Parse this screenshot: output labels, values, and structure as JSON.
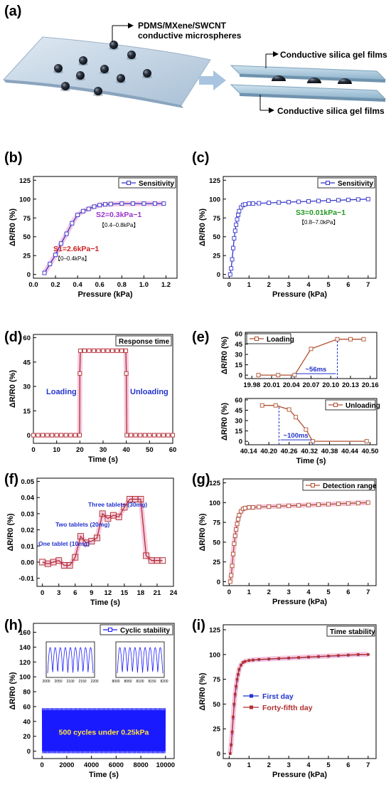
{
  "panel_labels": [
    "(a)",
    "(b)",
    "(c)",
    "(d)",
    "(e)",
    "(f)",
    "(g)",
    "(h)",
    "(i)"
  ],
  "schematic": {
    "microspheres_label_line1": "PDMS/MXene/SWCNT",
    "microspheres_label_line2": "conductive microspheres",
    "film_top_label": "Conductive silica gel films",
    "film_bottom_label": "Conductive silica gel films"
  },
  "chart_data": [
    {
      "id": "b",
      "type": "line",
      "xlabel": "Pressure (kPa)",
      "ylabel": "ΔR/R0 (%)",
      "xlim": [
        0,
        1.3
      ],
      "ylim": [
        -5,
        130
      ],
      "xticks": [
        0,
        0.2,
        0.4,
        0.6,
        0.8,
        1.0,
        1.2
      ],
      "xtick_labels": [
        "0.0",
        "0.2",
        "0.4",
        "0.6",
        "0.8",
        "1.0",
        "1.2"
      ],
      "yticks": [
        0,
        25,
        50,
        75,
        100,
        125
      ],
      "series": [
        {
          "name": "Sensitivity",
          "color": "#3333cc",
          "x": [
            0.1,
            0.15,
            0.2,
            0.25,
            0.3,
            0.35,
            0.4,
            0.45,
            0.5,
            0.55,
            0.6,
            0.65,
            0.7,
            0.8,
            0.9,
            1.0,
            1.1,
            1.18
          ],
          "y": [
            2,
            14,
            26,
            41,
            54,
            68,
            79,
            84,
            87,
            90,
            92,
            93,
            93.5,
            94,
            94,
            94,
            94,
            94
          ]
        }
      ],
      "annotations": [
        {
          "text": "S2=0.3kPa−1",
          "sub": "【0.4–0.8kPa】",
          "color": "#9933cc"
        },
        {
          "text": "S1=2.6kPa−1",
          "sub": "【0–0.4kPa】",
          "color": "#cc2222"
        }
      ]
    },
    {
      "id": "c",
      "type": "line",
      "xlabel": "Pressure (kPa)",
      "ylabel": "ΔR/R0 (%)",
      "xlim": [
        -0.3,
        7.4
      ],
      "ylim": [
        -5,
        130
      ],
      "xticks": [
        0,
        1,
        2,
        3,
        4,
        5,
        6,
        7
      ],
      "yticks": [
        0,
        25,
        50,
        75,
        100,
        125
      ],
      "series": [
        {
          "name": "Sensitivity",
          "color": "#3333cc",
          "x": [
            0.05,
            0.1,
            0.15,
            0.2,
            0.25,
            0.3,
            0.35,
            0.4,
            0.45,
            0.5,
            0.6,
            0.7,
            0.8,
            1.0,
            1.2,
            1.5,
            2,
            2.5,
            3,
            3.5,
            4,
            4.5,
            5,
            5.5,
            6,
            6.5,
            7
          ],
          "y": [
            0,
            8,
            20,
            35,
            48,
            58,
            66,
            73,
            79,
            84,
            89,
            92,
            93,
            94,
            94,
            94.5,
            95,
            95.5,
            96,
            96.5,
            97,
            97.5,
            98,
            98.5,
            99,
            99.5,
            100
          ]
        }
      ],
      "annotations": [
        {
          "text": "S3=0.01kPa−1",
          "sub": "【0.8–7.0kPa】",
          "color": "#229922"
        }
      ]
    },
    {
      "id": "d",
      "type": "line",
      "xlabel": "Time (s)",
      "ylabel": "ΔR/R0 (%)",
      "xlim": [
        0,
        60
      ],
      "ylim": [
        -5,
        62
      ],
      "xticks": [
        0,
        10,
        20,
        30,
        40,
        50,
        60
      ],
      "yticks": [
        0,
        15,
        30,
        45,
        60
      ],
      "series": [
        {
          "name": "Response time",
          "color": "#b03030",
          "x": [
            0,
            2,
            4,
            6,
            8,
            10,
            12,
            14,
            16,
            18,
            19.9,
            20,
            20.2,
            22,
            24,
            26,
            28,
            30,
            32,
            34,
            36,
            38,
            39.8,
            40,
            40.2,
            42,
            44,
            46,
            48,
            50,
            52,
            54,
            56,
            58,
            60
          ],
          "y": [
            0,
            0,
            0,
            0,
            0,
            0,
            0,
            0,
            0,
            0,
            0,
            38,
            52,
            52,
            52,
            52,
            52,
            52,
            52,
            52,
            52,
            52,
            52,
            38,
            0,
            0,
            0,
            0,
            0,
            0,
            0,
            0,
            0,
            0,
            0
          ]
        }
      ],
      "annotations": [
        {
          "text": "Loading"
        },
        {
          "text": "Unloading"
        }
      ]
    },
    {
      "id": "e1",
      "type": "line",
      "ylabel": "ΔR/R0 (%)",
      "xlim": [
        19.97,
        20.17
      ],
      "ylim": [
        -5,
        62
      ],
      "xticks": [
        19.98,
        20.01,
        20.04,
        20.07,
        20.1,
        20.13,
        20.16
      ],
      "xtick_labels": [
        "19.98",
        "20.01",
        "20.04",
        "20.07",
        "20.10",
        "20.13",
        "20.16"
      ],
      "yticks": [
        0,
        15,
        30,
        45,
        60
      ],
      "series": [
        {
          "name": "Loading",
          "color": "#b05030",
          "x": [
            19.99,
            20.02,
            20.045,
            20.07,
            20.11,
            20.13,
            20.15
          ],
          "y": [
            0,
            0,
            0,
            38,
            52,
            52,
            52
          ]
        }
      ],
      "annotations": [
        {
          "text": "~56ms"
        }
      ]
    },
    {
      "id": "e2",
      "type": "line",
      "xlabel": "Time (s)",
      "ylabel": "ΔR/R0 (%)",
      "xlim": [
        40.13,
        40.52
      ],
      "ylim": [
        -5,
        62
      ],
      "xticks": [
        40.14,
        40.2,
        40.26,
        40.32,
        40.38,
        40.44,
        40.5
      ],
      "xtick_labels": [
        "40.14",
        "40.20",
        "40.26",
        "40.32",
        "40.38",
        "40.44",
        "40.50"
      ],
      "yticks": [
        0,
        15,
        30,
        45,
        60
      ],
      "series": [
        {
          "name": "Unloading",
          "color": "#b05030",
          "x": [
            40.18,
            40.22,
            40.26,
            40.28,
            40.31,
            40.33,
            40.49
          ],
          "y": [
            52,
            52,
            46,
            35,
            17,
            0,
            0
          ]
        }
      ],
      "annotations": [
        {
          "text": "~100ms"
        }
      ]
    },
    {
      "id": "f",
      "type": "line",
      "xlabel": "Time (s)",
      "ylabel": "ΔR/R0 (%)",
      "xlim": [
        -1,
        24
      ],
      "ylim": [
        -0.015,
        0.052
      ],
      "xticks": [
        0,
        3,
        6,
        9,
        12,
        15,
        18,
        21,
        24
      ],
      "xtick_labels": [
        "0",
        "3",
        "6",
        "9",
        "12",
        "15",
        "18",
        "21",
        "24"
      ],
      "yticks": [
        -0.01,
        0,
        0.01,
        0.02,
        0.03,
        0.04,
        0.05
      ],
      "ytick_labels": [
        "-0.01",
        "0.00",
        "0.01",
        "0.02",
        "0.03",
        "0.04",
        "0.05"
      ],
      "series": [
        {
          "name": "",
          "color": "#b03030",
          "x": [
            0,
            1,
            2,
            3,
            4,
            5,
            6,
            7,
            8,
            9,
            10,
            11,
            12,
            13,
            14,
            15,
            16,
            17,
            18,
            19,
            20,
            21,
            22
          ],
          "y": [
            0,
            -0.001,
            0,
            0.001,
            -0.002,
            -0.002,
            0.003,
            0.016,
            0.012,
            0.013,
            0.015,
            0.03,
            0.027,
            0.029,
            0.028,
            0.034,
            0.039,
            0.039,
            0.039,
            0.004,
            0.001,
            0.001,
            0.001
          ]
        }
      ],
      "annotations": [
        {
          "text": "One tablet (10mg)"
        },
        {
          "text": "Two tablets (20mg)"
        },
        {
          "text": "Three tablets (30mg)"
        }
      ]
    },
    {
      "id": "g",
      "type": "line",
      "xlabel": "Pressure (kPa)",
      "ylabel": "ΔR/R0 (%)",
      "xlim": [
        -0.3,
        7.4
      ],
      "ylim": [
        -5,
        130
      ],
      "xticks": [
        0,
        1,
        2,
        3,
        4,
        5,
        6,
        7
      ],
      "yticks": [
        0,
        25,
        50,
        75,
        100,
        125
      ],
      "series": [
        {
          "name": "Detection range",
          "color": "#b05030",
          "x": [
            0.05,
            0.1,
            0.15,
            0.2,
            0.25,
            0.3,
            0.35,
            0.4,
            0.45,
            0.5,
            0.6,
            0.7,
            0.8,
            1.0,
            1.2,
            1.5,
            2,
            2.5,
            3,
            3.5,
            4,
            4.5,
            5,
            5.5,
            6,
            6.5,
            7
          ],
          "y": [
            0,
            8,
            20,
            35,
            48,
            58,
            66,
            73,
            79,
            84,
            89,
            92,
            93,
            94,
            94,
            94.5,
            95,
            95.5,
            96,
            96.5,
            97,
            97.5,
            98,
            98.5,
            99,
            99.5,
            100
          ]
        }
      ]
    },
    {
      "id": "h",
      "type": "line",
      "xlabel": "Time (s)",
      "ylabel": "ΔR/R0 (%)",
      "xlim": [
        -700,
        10700
      ],
      "ylim": [
        -10,
        172
      ],
      "xticks": [
        0,
        2000,
        4000,
        6000,
        8000,
        10000
      ],
      "yticks": [
        0,
        20,
        40,
        60,
        80,
        100,
        120,
        140,
        160
      ],
      "series": [
        {
          "name": "Cyclic stability",
          "color": "#1a1aff",
          "band": [
            0,
            55
          ]
        }
      ],
      "annotations": [
        {
          "text": "500 cycles under 0.25kPa"
        }
      ],
      "insets": [
        {
          "xticks": [
            2000,
            2050,
            2100,
            2150,
            2200
          ]
        },
        {
          "xticks": [
            8000,
            8050,
            8100,
            8150,
            8200
          ]
        }
      ]
    },
    {
      "id": "i",
      "type": "line",
      "xlabel": "Pressure (kPa)",
      "ylabel": "ΔR/R0 (%)",
      "xlim": [
        -0.3,
        7.4
      ],
      "ylim": [
        -5,
        130
      ],
      "xticks": [
        0,
        1,
        2,
        3,
        4,
        5,
        6,
        7
      ],
      "yticks": [
        0,
        25,
        50,
        75,
        100,
        125
      ],
      "title_box": "Time stability",
      "series": [
        {
          "name": "First day",
          "color": "#2233cc",
          "x": [
            0.05,
            0.1,
            0.15,
            0.2,
            0.25,
            0.3,
            0.35,
            0.4,
            0.45,
            0.5,
            0.6,
            0.7,
            0.8,
            1.0,
            1.2,
            1.5,
            2,
            2.5,
            3,
            3.5,
            4,
            4.5,
            5,
            5.5,
            6,
            6.5,
            7
          ],
          "y": [
            0,
            8,
            20,
            35,
            48,
            58,
            66,
            73,
            79,
            84,
            89,
            92,
            93,
            94,
            94,
            94.5,
            95,
            95.5,
            96,
            96.5,
            97,
            97.5,
            98,
            98.5,
            99,
            99.5,
            100
          ]
        },
        {
          "name": "Forty-fifth day",
          "color": "#b03030",
          "x": [
            0.05,
            0.1,
            0.15,
            0.2,
            0.25,
            0.3,
            0.35,
            0.4,
            0.45,
            0.5,
            0.6,
            0.7,
            0.8,
            1.0,
            1.2,
            1.5,
            2,
            2.5,
            3,
            3.5,
            4,
            4.5,
            5,
            5.5,
            6,
            6.5,
            7
          ],
          "y": [
            0,
            9,
            22,
            37,
            50,
            60,
            68,
            75,
            80,
            85,
            89.5,
            92,
            93,
            94,
            94.5,
            95,
            95.5,
            96,
            96.5,
            97,
            97.5,
            98,
            98.5,
            99,
            99.5,
            100,
            100
          ]
        }
      ]
    }
  ]
}
